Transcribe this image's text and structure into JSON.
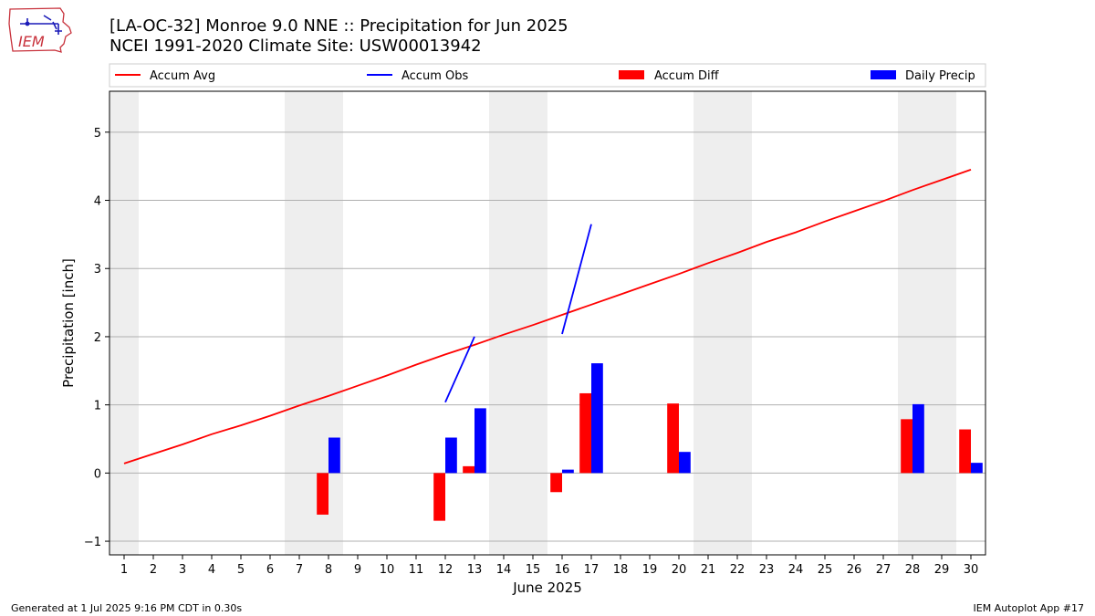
{
  "logo": {
    "text": "IEM"
  },
  "title": "[LA-OC-32] Monroe 9.0 NNE :: Precipitation for Jun 2025",
  "subtitle": "NCEI 1991-2020 Climate Site: USW00013942",
  "footer": {
    "left": "Generated at 1 Jul 2025 9:16 PM CDT in 0.30s",
    "right": "IEM Autoplot App #17"
  },
  "chart_data": {
    "type": "bar",
    "xlabel": "June 2025",
    "ylabel": "Precipitation [inch]",
    "xlim": [
      0.5,
      30.5
    ],
    "ylim": [
      -1.2,
      5.6
    ],
    "yticks": [
      -1,
      0,
      1,
      2,
      3,
      4,
      5
    ],
    "grid": true,
    "legend_placement": "top",
    "weekend_shading": [
      [
        0.5,
        1.5
      ],
      [
        6.5,
        8.5
      ],
      [
        13.5,
        15.5
      ],
      [
        20.5,
        22.5
      ],
      [
        27.5,
        29.5
      ]
    ],
    "days": [
      1,
      2,
      3,
      4,
      5,
      6,
      7,
      8,
      9,
      10,
      11,
      12,
      13,
      14,
      15,
      16,
      17,
      18,
      19,
      20,
      21,
      22,
      23,
      24,
      25,
      26,
      27,
      28,
      29,
      30
    ],
    "colors": {
      "avg": "#ff0000",
      "obs": "#0000ff",
      "diff": "#ff0000",
      "daily": "#0000ff",
      "shade": "#eeeeee"
    },
    "series": [
      {
        "name": "Accum Avg",
        "type": "line",
        "values": [
          0.14,
          0.28,
          0.42,
          0.57,
          0.7,
          0.84,
          0.99,
          1.13,
          1.28,
          1.43,
          1.59,
          1.74,
          1.88,
          2.03,
          2.17,
          2.32,
          2.47,
          2.62,
          2.77,
          2.92,
          3.08,
          3.23,
          3.39,
          3.53,
          3.69,
          3.84,
          3.99,
          4.15,
          4.3,
          4.45
        ]
      },
      {
        "name": "Accum Obs",
        "type": "line",
        "segments": [
          {
            "x": [
              12,
              13
            ],
            "y": [
              1.04,
              2.0
            ]
          },
          {
            "x": [
              16,
              17
            ],
            "y": [
              2.04,
              3.65
            ]
          }
        ]
      },
      {
        "name": "Accum Diff",
        "type": "bar",
        "points": [
          {
            "x": 8,
            "y": -0.61
          },
          {
            "x": 12,
            "y": -0.7
          },
          {
            "x": 13,
            "y": 0.1
          },
          {
            "x": 16,
            "y": -0.28
          },
          {
            "x": 17,
            "y": 1.17
          },
          {
            "x": 20,
            "y": 1.02
          },
          {
            "x": 28,
            "y": 0.79
          },
          {
            "x": 30,
            "y": 0.64
          }
        ]
      },
      {
        "name": "Daily Precip",
        "type": "bar",
        "points": [
          {
            "x": 8,
            "y": 0.52
          },
          {
            "x": 12,
            "y": 0.52
          },
          {
            "x": 13,
            "y": 0.95
          },
          {
            "x": 16,
            "y": 0.05
          },
          {
            "x": 17,
            "y": 1.61
          },
          {
            "x": 20,
            "y": 0.31
          },
          {
            "x": 28,
            "y": 1.01
          },
          {
            "x": 30,
            "y": 0.15
          }
        ]
      }
    ]
  }
}
